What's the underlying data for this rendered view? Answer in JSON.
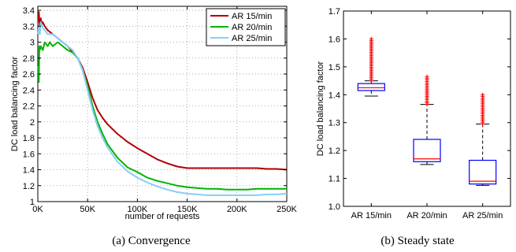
{
  "chart_data": [
    {
      "type": "line",
      "xlabel": "number of requests",
      "ylabel": "DC load balancing factor",
      "xlim": [
        0,
        250000
      ],
      "ylim": [
        1.0,
        3.45
      ],
      "x_ticks": [
        0,
        50000,
        100000,
        150000,
        200000,
        250000
      ],
      "x_tick_labels": [
        "0K",
        "50K",
        "100K",
        "150K",
        "200K",
        "250K"
      ],
      "y_ticks": [
        1,
        1.2,
        1.4,
        1.6,
        1.8,
        2,
        2.2,
        2.4,
        2.6,
        2.8,
        3,
        3.2,
        3.4
      ],
      "y_tick_labels": [
        "1",
        "1.2",
        "1.4",
        "1.6",
        "1.8",
        "2",
        "2.2",
        "2.4",
        "2.6",
        "2.8",
        "3",
        "3.2",
        "3.4"
      ],
      "grid": true,
      "legend_position": "top-right",
      "caption": "(a) Convergence",
      "series": [
        {
          "name": "AR 15/min",
          "color": "#b00000",
          "points": [
            [
              500,
              3.25
            ],
            [
              1000,
              3.38
            ],
            [
              2000,
              3.2
            ],
            [
              3000,
              3.3
            ],
            [
              4000,
              3.22
            ],
            [
              5000,
              3.25
            ],
            [
              7000,
              3.2
            ],
            [
              10000,
              3.15
            ],
            [
              15000,
              3.1
            ],
            [
              20000,
              3.05
            ],
            [
              25000,
              3.0
            ],
            [
              30000,
              2.95
            ],
            [
              35000,
              2.88
            ],
            [
              40000,
              2.8
            ],
            [
              45000,
              2.68
            ],
            [
              50000,
              2.5
            ],
            [
              55000,
              2.3
            ],
            [
              60000,
              2.15
            ],
            [
              65000,
              2.05
            ],
            [
              70000,
              1.97
            ],
            [
              80000,
              1.85
            ],
            [
              90000,
              1.75
            ],
            [
              100000,
              1.67
            ],
            [
              110000,
              1.6
            ],
            [
              120000,
              1.53
            ],
            [
              130000,
              1.48
            ],
            [
              140000,
              1.44
            ],
            [
              150000,
              1.42
            ],
            [
              160000,
              1.42
            ],
            [
              170000,
              1.42
            ],
            [
              180000,
              1.42
            ],
            [
              190000,
              1.42
            ],
            [
              200000,
              1.42
            ],
            [
              210000,
              1.42
            ],
            [
              220000,
              1.42
            ],
            [
              230000,
              1.41
            ],
            [
              240000,
              1.41
            ],
            [
              250000,
              1.4
            ]
          ]
        },
        {
          "name": "AR 20/min",
          "color": "#00b400",
          "points": [
            [
              500,
              2.7
            ],
            [
              1000,
              2.5
            ],
            [
              1500,
              2.95
            ],
            [
              2000,
              2.9
            ],
            [
              3000,
              2.95
            ],
            [
              5000,
              2.9
            ],
            [
              7000,
              3.0
            ],
            [
              10000,
              2.95
            ],
            [
              12000,
              3.0
            ],
            [
              15000,
              2.95
            ],
            [
              20000,
              3.0
            ],
            [
              25000,
              2.95
            ],
            [
              30000,
              2.9
            ],
            [
              35000,
              2.87
            ],
            [
              40000,
              2.8
            ],
            [
              45000,
              2.65
            ],
            [
              50000,
              2.45
            ],
            [
              55000,
              2.2
            ],
            [
              60000,
              2.0
            ],
            [
              65000,
              1.85
            ],
            [
              70000,
              1.72
            ],
            [
              80000,
              1.55
            ],
            [
              90000,
              1.43
            ],
            [
              100000,
              1.37
            ],
            [
              110000,
              1.3
            ],
            [
              120000,
              1.26
            ],
            [
              130000,
              1.23
            ],
            [
              140000,
              1.2
            ],
            [
              150000,
              1.18
            ],
            [
              160000,
              1.17
            ],
            [
              170000,
              1.16
            ],
            [
              180000,
              1.16
            ],
            [
              190000,
              1.15
            ],
            [
              200000,
              1.15
            ],
            [
              210000,
              1.15
            ],
            [
              220000,
              1.16
            ],
            [
              230000,
              1.16
            ],
            [
              240000,
              1.16
            ],
            [
              250000,
              1.16
            ]
          ]
        },
        {
          "name": "AR 25/min",
          "color": "#87cefa",
          "points": [
            [
              500,
              3.1
            ],
            [
              1000,
              3.2
            ],
            [
              2000,
              3.1
            ],
            [
              3000,
              3.25
            ],
            [
              5000,
              3.18
            ],
            [
              7000,
              3.15
            ],
            [
              10000,
              3.1
            ],
            [
              15000,
              3.1
            ],
            [
              20000,
              3.05
            ],
            [
              25000,
              3.0
            ],
            [
              30000,
              2.95
            ],
            [
              35000,
              2.9
            ],
            [
              40000,
              2.8
            ],
            [
              45000,
              2.65
            ],
            [
              50000,
              2.4
            ],
            [
              55000,
              2.15
            ],
            [
              60000,
              1.95
            ],
            [
              65000,
              1.8
            ],
            [
              70000,
              1.68
            ],
            [
              80000,
              1.5
            ],
            [
              90000,
              1.38
            ],
            [
              100000,
              1.3
            ],
            [
              110000,
              1.24
            ],
            [
              120000,
              1.19
            ],
            [
              130000,
              1.15
            ],
            [
              140000,
              1.12
            ],
            [
              150000,
              1.1
            ],
            [
              160000,
              1.09
            ],
            [
              170000,
              1.08
            ],
            [
              180000,
              1.08
            ],
            [
              190000,
              1.08
            ],
            [
              200000,
              1.08
            ],
            [
              210000,
              1.08
            ],
            [
              220000,
              1.08
            ],
            [
              230000,
              1.09
            ],
            [
              240000,
              1.09
            ],
            [
              250000,
              1.1
            ]
          ]
        }
      ]
    },
    {
      "type": "box",
      "ylabel": "DC load balancing factor",
      "ylim": [
        1.0,
        1.7
      ],
      "y_ticks": [
        1,
        1.1,
        1.2,
        1.3,
        1.4,
        1.5,
        1.6,
        1.7
      ],
      "y_tick_labels": [
        "1.0",
        "1.1",
        "1.2",
        "1.3",
        "1.4",
        "1.5",
        "1.6",
        "1.7"
      ],
      "categories": [
        "AR 15/min",
        "AR 20/min",
        "AR 25/min"
      ],
      "caption": "(b) Steady state",
      "box_color": "#0000ff",
      "median_color": "#ff0000",
      "outlier_color": "#ff0000",
      "whisker_color": "#000000",
      "boxes": [
        {
          "whisker_low": 1.395,
          "q1": 1.415,
          "median": 1.425,
          "q3": 1.44,
          "whisker_high": 1.45,
          "outlier_range": [
            1.45,
            1.6
          ]
        },
        {
          "whisker_low": 1.15,
          "q1": 1.16,
          "median": 1.17,
          "q3": 1.24,
          "whisker_high": 1.365,
          "outlier_range": [
            1.365,
            1.465
          ]
        },
        {
          "whisker_low": 1.075,
          "q1": 1.08,
          "median": 1.09,
          "q3": 1.165,
          "whisker_high": 1.295,
          "outlier_range": [
            1.295,
            1.4
          ]
        }
      ]
    }
  ]
}
